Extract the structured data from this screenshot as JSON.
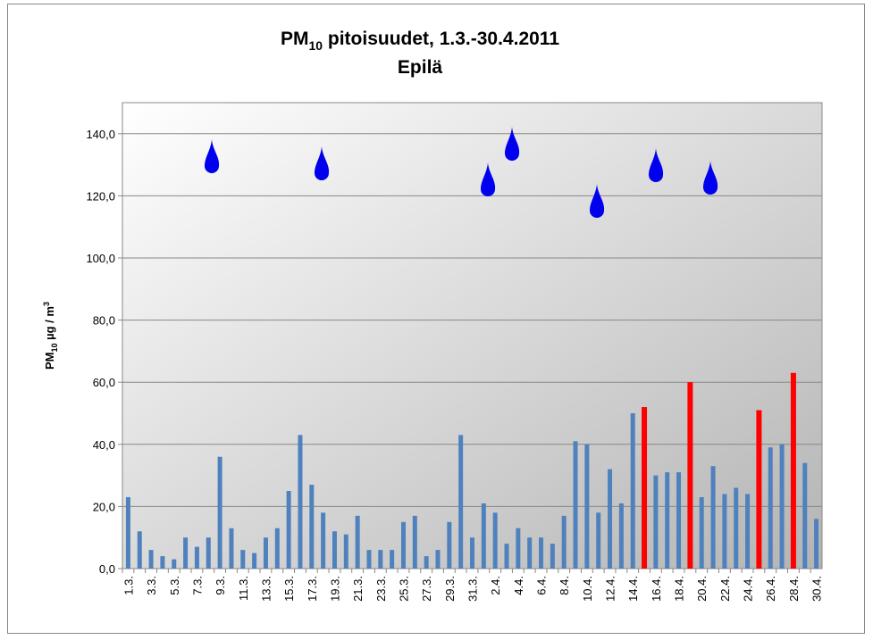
{
  "chart_data": {
    "type": "bar",
    "title_parts": [
      "PM",
      "10",
      " pitoisuudet, 1.3.-30.4.2011"
    ],
    "subtitle": "Epilä",
    "ylabel_parts": [
      "PM",
      "10",
      " µg / m",
      "3"
    ],
    "categories": [
      "1.3.",
      null,
      "3.3.",
      null,
      "5.3.",
      null,
      "7.3.",
      null,
      "9.3.",
      null,
      "11.3.",
      null,
      "13.3.",
      null,
      "15.3.",
      null,
      "17.3.",
      null,
      "19.3.",
      null,
      "21.3.",
      null,
      "23.3.",
      null,
      "25.3.",
      null,
      "27.3.",
      null,
      "29.3.",
      null,
      "31.3.",
      null,
      "2.4.",
      null,
      "4.4.",
      null,
      "6.4.",
      null,
      "8.4.",
      null,
      "10.4.",
      null,
      "12.4.",
      null,
      "14.4.",
      null,
      "16.4.",
      null,
      "18.4.",
      null,
      "20.4.",
      null,
      "22.4.",
      null,
      "24.4.",
      null,
      "26.4.",
      null,
      "28.4.",
      null,
      "30.4."
    ],
    "values": [
      23,
      12,
      6,
      4,
      3,
      10,
      7,
      10,
      36,
      13,
      6,
      5,
      10,
      13,
      25,
      43,
      27,
      18,
      12,
      11,
      17,
      6,
      6,
      6,
      15,
      17,
      4,
      6,
      15,
      43,
      10,
      21,
      18,
      8,
      13,
      10,
      10,
      8,
      17,
      41,
      40,
      18,
      32,
      21,
      50,
      52,
      30,
      31,
      31,
      60,
      23,
      33,
      24,
      26,
      24,
      51,
      39,
      40,
      63,
      34,
      16
    ],
    "color": "#4f81bd",
    "exceed_color": "#ff0000",
    "limit_line": 50,
    "limit_color": "#c0504d",
    "ylim": [
      0,
      150
    ],
    "yticks": [
      {
        "value": 0,
        "label": "0,0"
      },
      {
        "value": 20,
        "label": "20,0"
      },
      {
        "value": 40,
        "label": "40,0"
      },
      {
        "value": 60,
        "label": "60,0"
      },
      {
        "value": 80,
        "label": "80,0"
      },
      {
        "value": 100,
        "label": "100,0"
      },
      {
        "value": 120,
        "label": "120,0"
      },
      {
        "value": 140,
        "label": "140,0"
      }
    ],
    "grid": true
  }
}
